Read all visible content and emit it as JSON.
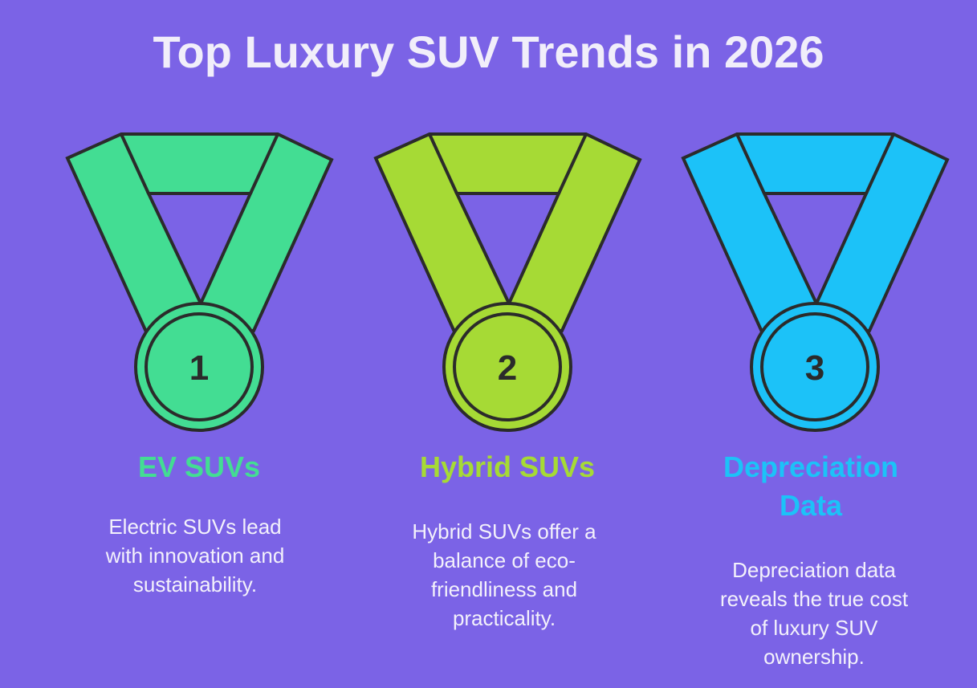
{
  "title": "Top Luxury SUV Trends in 2026",
  "background_color": "#7B63E6",
  "items": [
    {
      "number": "1",
      "color": "#43DD93",
      "heading_lines": [
        "EV SUVs"
      ],
      "description_lines": [
        "Electric SUVs lead",
        "with innovation and",
        "sustainability."
      ]
    },
    {
      "number": "2",
      "color": "#A6DA35",
      "heading_lines": [
        "Hybrid SUVs"
      ],
      "description_lines": [
        "Hybrid SUVs offer a",
        "balance of eco-",
        "friendliness and",
        "practicality."
      ]
    },
    {
      "number": "3",
      "color": "#1CC2F8",
      "heading_lines": [
        "Depreciation",
        "Data"
      ],
      "description_lines": [
        "Depreciation data",
        "reveals the true cost",
        "of luxury SUV",
        "ownership."
      ]
    }
  ]
}
